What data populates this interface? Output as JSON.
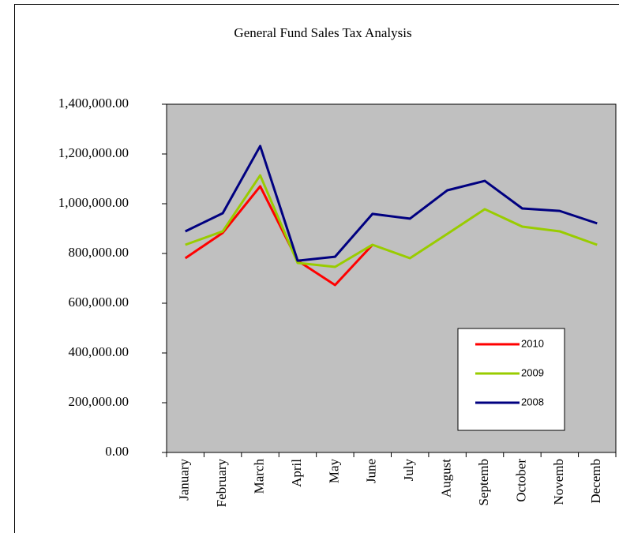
{
  "chart_data": {
    "type": "line",
    "title": "General Fund Sales Tax Analysis",
    "categories": [
      "January",
      "February",
      "March",
      "April",
      "May",
      "June",
      "July",
      "August",
      "Septemb",
      "October",
      "Novemb",
      "Decemb"
    ],
    "series": [
      {
        "name": "2010",
        "color": "#ff0000",
        "values": [
          781000,
          883000,
          1070000,
          771000,
          673000,
          835000,
          null,
          null,
          null,
          null,
          null,
          null
        ]
      },
      {
        "name": "2009",
        "color": "#99cc00",
        "values": [
          835000,
          889000,
          1114000,
          762000,
          746000,
          835000,
          781000,
          879000,
          978000,
          908000,
          889000,
          835000
        ]
      },
      {
        "name": "2008",
        "color": "#000080",
        "values": [
          889000,
          962000,
          1232000,
          771000,
          787000,
          959000,
          940000,
          1054000,
          1092000,
          981000,
          971000,
          921000
        ]
      }
    ],
    "ylim": [
      0,
      1400000
    ],
    "yticks": [
      {
        "value": 0,
        "label": "0.00"
      },
      {
        "value": 200000,
        "label": "200,000.00"
      },
      {
        "value": 400000,
        "label": "400,000.00"
      },
      {
        "value": 600000,
        "label": "600,000.00"
      },
      {
        "value": 800000,
        "label": "800,000.00"
      },
      {
        "value": 1000000,
        "label": "1,000,000.00"
      },
      {
        "value": 1200000,
        "label": "1,200,000.00"
      },
      {
        "value": 1400000,
        "label": "1,400,000.00"
      }
    ],
    "plot_background": "#c0c0c0",
    "legend": "lower right"
  }
}
